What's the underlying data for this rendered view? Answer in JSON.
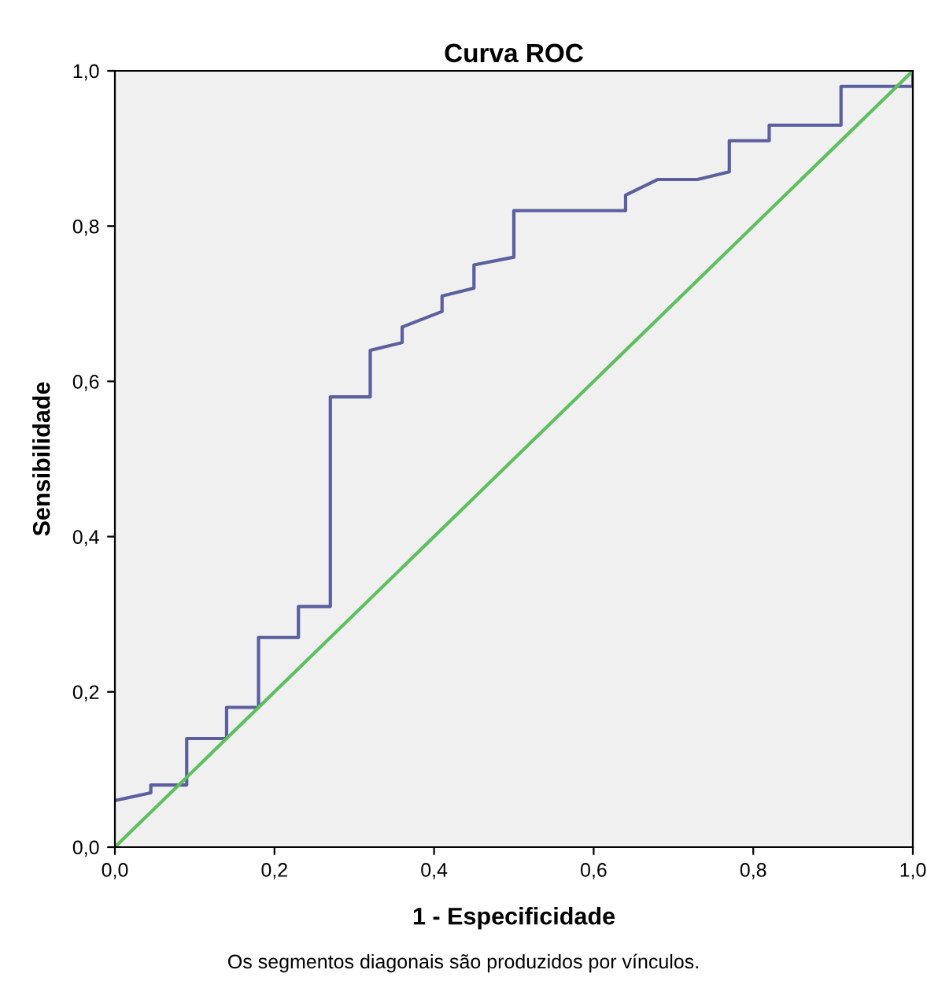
{
  "chart_data": {
    "type": "line",
    "title": "Curva ROC",
    "xlabel": "1 - Especificidade",
    "ylabel": "Sensibilidade",
    "annotations": [
      "Os segmentos diagonais são produzidos por vínculos."
    ],
    "series": [
      {
        "color": "#5b5f9e",
        "x": [
          0,
          0.045,
          0.045,
          0.09,
          0.09,
          0.14,
          0.14,
          0.18,
          0.18,
          0.23,
          0.23,
          0.27,
          0.27,
          0.32,
          0.32,
          0.36,
          0.36,
          0.41,
          0.41,
          0.45,
          0.45,
          0.5,
          0.5,
          0.64,
          0.64,
          0.68,
          0.73,
          0.77,
          0.77,
          0.82,
          0.82,
          0.91,
          0.91,
          1,
          1
        ],
        "values": [
          0.06,
          0.07,
          0.08,
          0.08,
          0.14,
          0.14,
          0.18,
          0.18,
          0.27,
          0.27,
          0.31,
          0.31,
          0.58,
          0.58,
          0.64,
          0.65,
          0.67,
          0.69,
          0.71,
          0.72,
          0.75,
          0.76,
          0.82,
          0.82,
          0.84,
          0.86,
          0.86,
          0.87,
          0.91,
          0.91,
          0.93,
          0.93,
          0.98,
          0.98,
          1
        ]
      },
      {
        "color": "#5dbf5d",
        "x": [
          0,
          1
        ],
        "values": [
          0,
          1
        ]
      }
    ],
    "xlim": [
      0,
      1
    ],
    "ylim": [
      0,
      1
    ],
    "xticks": [
      {
        "value": 0,
        "label": "0,0"
      },
      {
        "value": 0.2,
        "label": "0,2"
      },
      {
        "value": 0.4,
        "label": "0,4"
      },
      {
        "value": 0.6,
        "label": "0,6"
      },
      {
        "value": 0.8,
        "label": "0,8"
      },
      {
        "value": 1,
        "label": "1,0"
      }
    ],
    "yticks": [
      {
        "value": 0,
        "label": "0,0"
      },
      {
        "value": 0.2,
        "label": "0,2"
      },
      {
        "value": 0.4,
        "label": "0,4"
      },
      {
        "value": 0.6,
        "label": "0,6"
      },
      {
        "value": 0.8,
        "label": "0,8"
      },
      {
        "value": 1,
        "label": "1,0"
      }
    ],
    "grid": false,
    "legend": false
  }
}
